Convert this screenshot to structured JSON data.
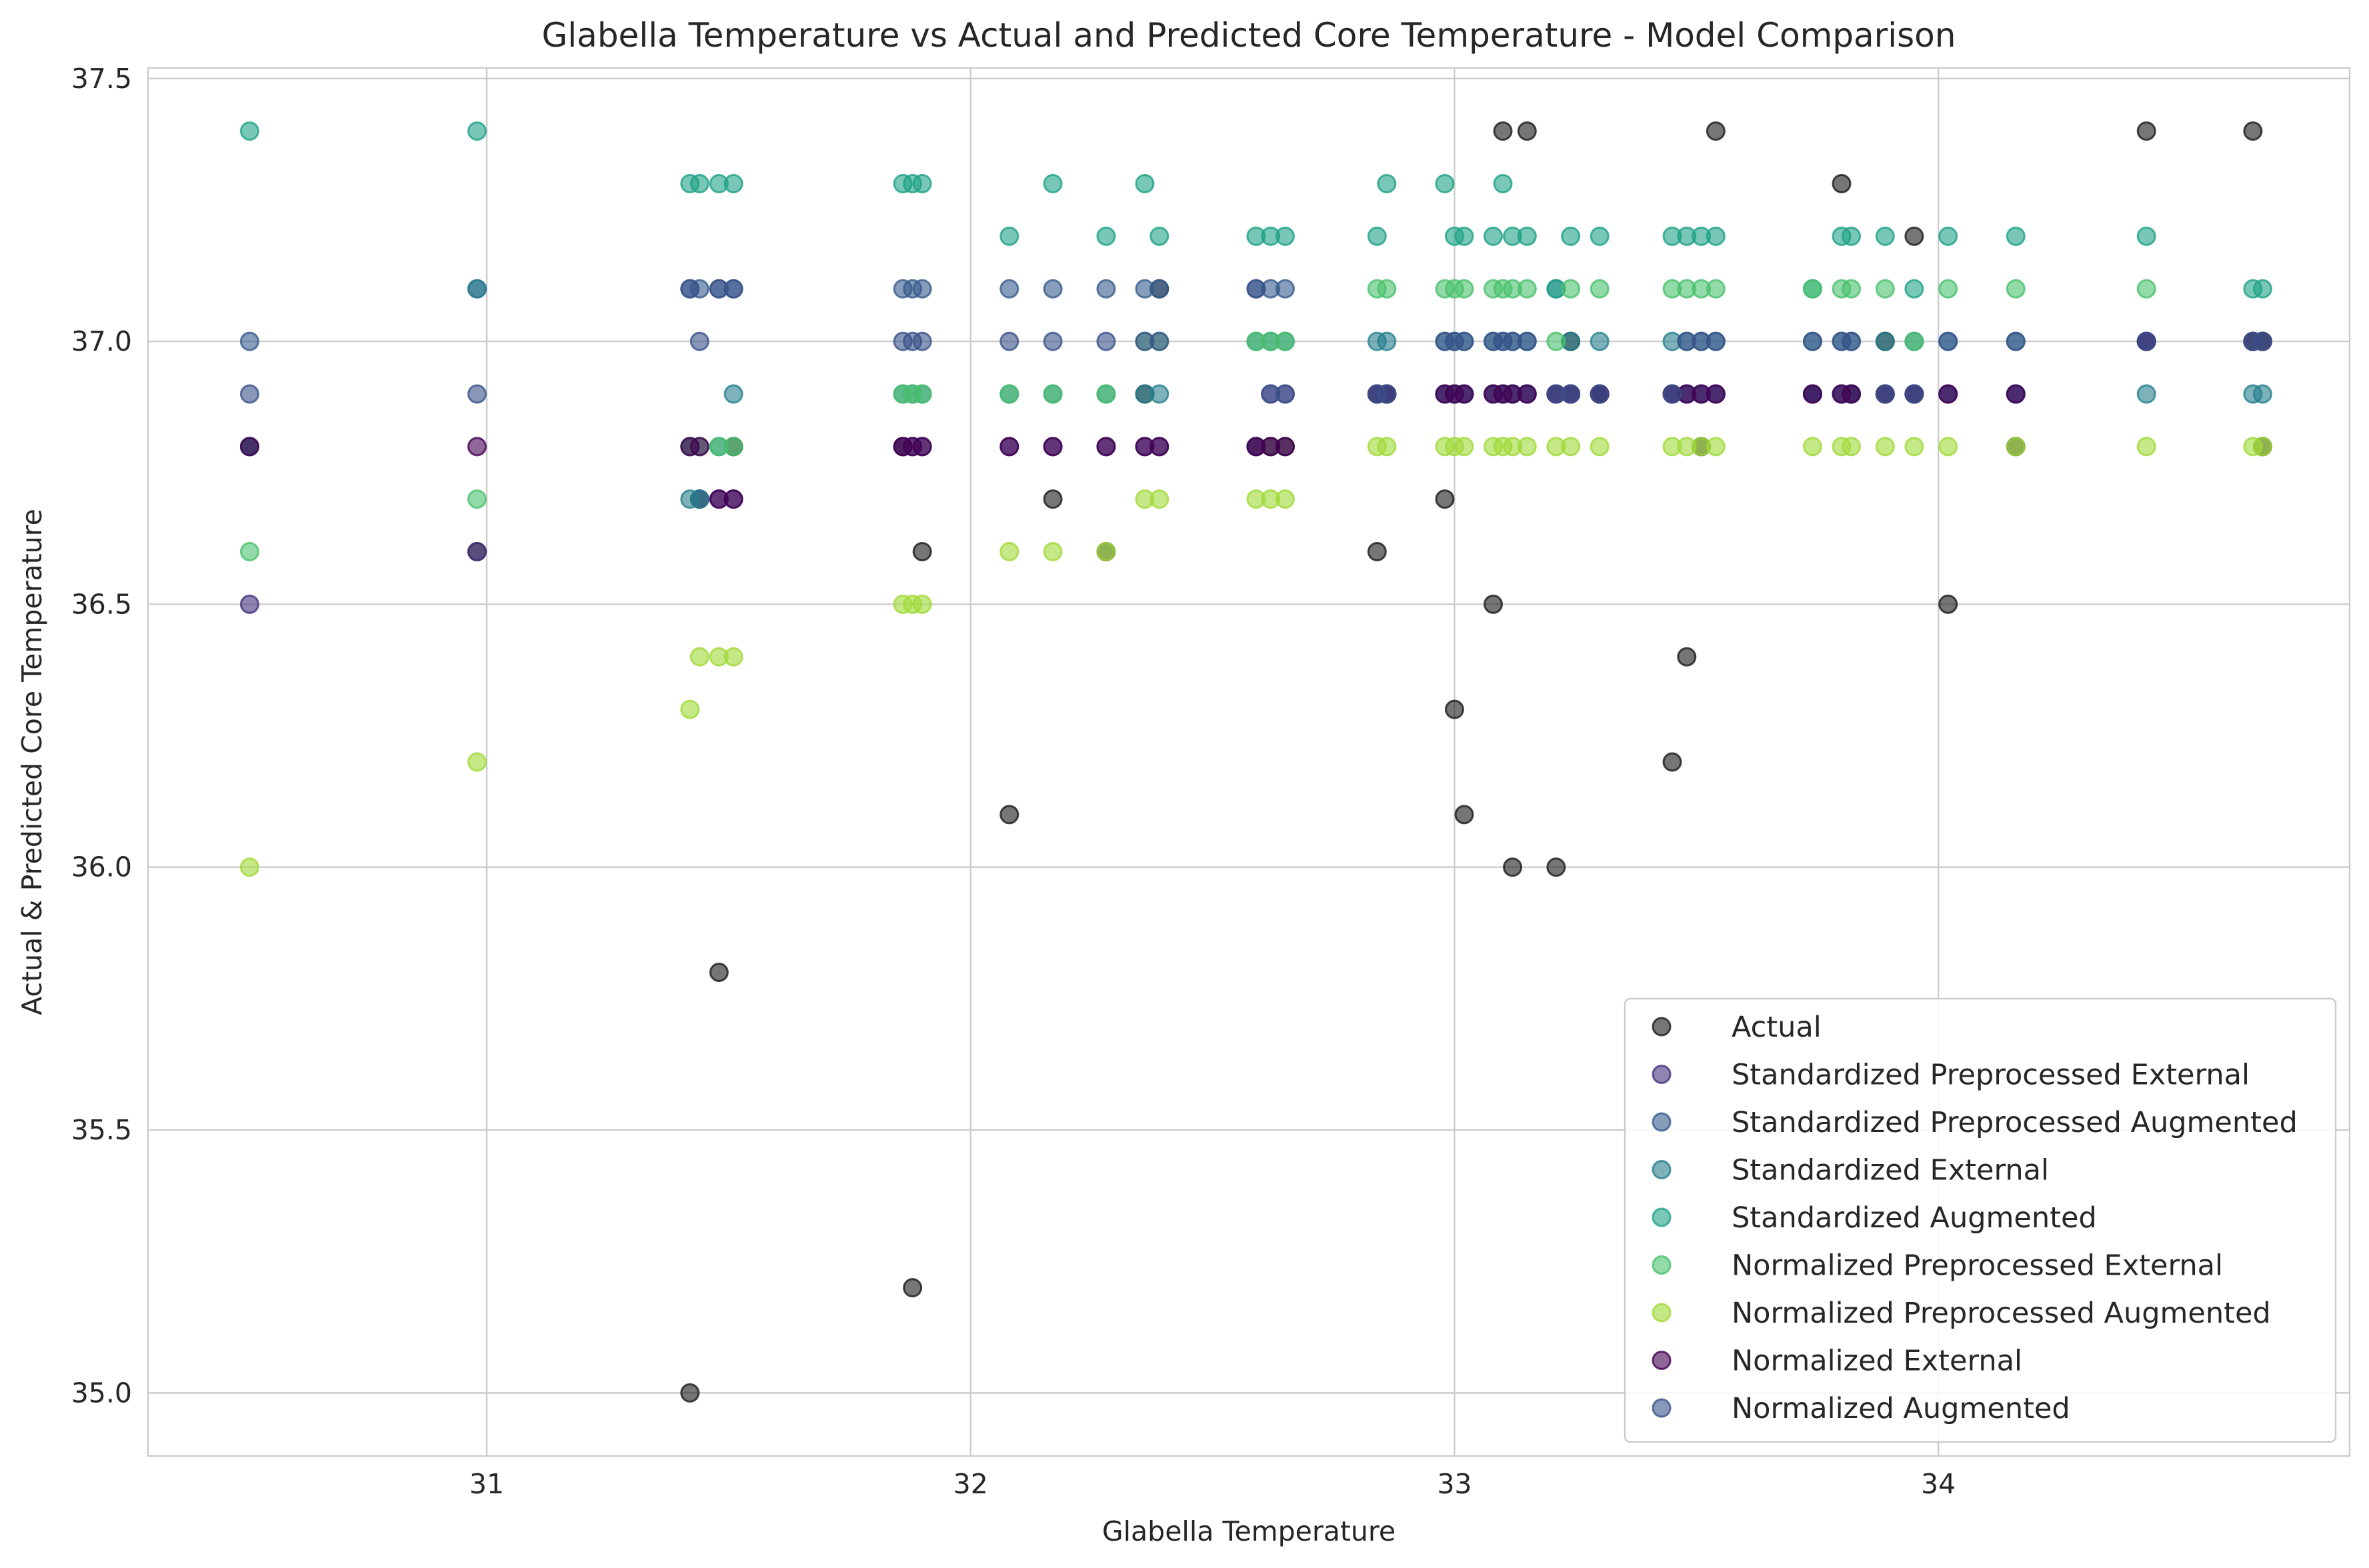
{
  "chart_data": {
    "type": "scatter",
    "title": "Glabella Temperature vs Actual and Predicted Core Temperature - Model Comparison",
    "xlabel": "Glabella Temperature",
    "ylabel": "Actual & Predicted Core Temperature",
    "xlim": [
      30.3,
      34.85
    ],
    "ylim": [
      34.88,
      37.52
    ],
    "xticks": [
      31,
      32,
      33,
      34
    ],
    "yticks": [
      35.0,
      35.5,
      36.0,
      36.5,
      37.0,
      37.5
    ],
    "xtick_labels": [
      "31",
      "32",
      "33",
      "34"
    ],
    "ytick_labels": [
      "35.0",
      "35.5",
      "36.0",
      "36.5",
      "37.0",
      "37.5"
    ],
    "grid": true,
    "legend_position": "lower-right",
    "marker_alpha": 0.6,
    "x": [
      30.51,
      30.98,
      31.42,
      31.44,
      31.48,
      31.51,
      31.86,
      31.88,
      31.9,
      32.08,
      32.17,
      32.28,
      32.36,
      32.39,
      32.59,
      32.62,
      32.65,
      32.84,
      32.86,
      32.98,
      33.0,
      33.02,
      33.08,
      33.1,
      33.12,
      33.15,
      33.21,
      33.24,
      33.3,
      33.45,
      33.48,
      33.51,
      33.54,
      33.74,
      33.8,
      33.82,
      33.89,
      33.95,
      34.02,
      34.16,
      34.43,
      34.65,
      34.67
    ],
    "series": [
      {
        "name": "Actual",
        "color": "#1a1a1a",
        "y": [
          36.8,
          36.6,
          35.0,
          36.7,
          35.8,
          36.8,
          36.8,
          35.2,
          36.6,
          36.1,
          36.7,
          36.6,
          36.9,
          37.1,
          36.8,
          36.8,
          36.8,
          36.6,
          36.9,
          36.7,
          36.3,
          36.1,
          36.5,
          37.4,
          36.0,
          37.4,
          36.0,
          37.0,
          36.9,
          36.2,
          36.4,
          36.8,
          37.4,
          36.9,
          37.3,
          36.9,
          37.0,
          37.2,
          36.5,
          36.8,
          37.4,
          37.4,
          36.8
        ]
      },
      {
        "name": "Standardized Preprocessed External",
        "color": "#46327e",
        "y": [
          36.5,
          36.6,
          36.8,
          36.7,
          36.7,
          36.7,
          36.8,
          36.8,
          36.8,
          36.8,
          36.8,
          36.8,
          36.8,
          36.8,
          36.8,
          36.9,
          36.9,
          36.9,
          36.9,
          36.9,
          36.9,
          36.9,
          36.9,
          36.9,
          36.9,
          36.9,
          36.9,
          36.9,
          36.9,
          36.9,
          36.9,
          36.9,
          36.9,
          36.9,
          36.9,
          36.9,
          36.9,
          36.9,
          36.9,
          36.9,
          37.0,
          37.0,
          37.0
        ]
      },
      {
        "name": "Standardized Preprocessed Augmented",
        "color": "#365c8d",
        "y": [
          37.0,
          37.1,
          37.1,
          37.1,
          37.1,
          37.1,
          37.1,
          37.1,
          37.1,
          37.1,
          37.1,
          37.1,
          37.1,
          37.1,
          37.1,
          37.1,
          37.1,
          36.9,
          36.9,
          36.9,
          36.9,
          36.9,
          36.9,
          36.9,
          36.9,
          36.9,
          36.9,
          36.9,
          36.9,
          36.9,
          36.9,
          36.9,
          36.9,
          36.9,
          36.9,
          36.9,
          36.9,
          36.9,
          36.9,
          36.9,
          37.0,
          37.0,
          37.0
        ]
      },
      {
        "name": "Standardized External",
        "color": "#277f8e",
        "y": [
          36.8,
          37.1,
          36.7,
          36.7,
          36.8,
          36.9,
          36.9,
          36.9,
          36.9,
          36.9,
          36.9,
          36.9,
          36.9,
          36.9,
          37.0,
          37.0,
          37.0,
          37.0,
          37.0,
          37.0,
          37.0,
          37.0,
          37.0,
          37.0,
          37.0,
          37.0,
          37.1,
          37.0,
          37.0,
          37.0,
          37.0,
          37.0,
          37.0,
          37.0,
          37.0,
          37.0,
          37.0,
          37.0,
          37.0,
          37.0,
          36.9,
          36.9,
          36.9
        ]
      },
      {
        "name": "Standardized Augmented",
        "color": "#1fa187",
        "y": [
          37.4,
          37.4,
          37.3,
          37.3,
          37.3,
          37.3,
          37.3,
          37.3,
          37.3,
          37.2,
          37.3,
          37.2,
          37.3,
          37.2,
          37.2,
          37.2,
          37.2,
          37.2,
          37.3,
          37.3,
          37.2,
          37.2,
          37.2,
          37.3,
          37.2,
          37.2,
          37.1,
          37.2,
          37.2,
          37.2,
          37.2,
          37.2,
          37.2,
          37.1,
          37.2,
          37.2,
          37.2,
          37.1,
          37.2,
          37.2,
          37.2,
          37.1,
          37.1
        ]
      },
      {
        "name": "Normalized Preprocessed External",
        "color": "#4ac16d",
        "y": [
          36.6,
          36.7,
          36.8,
          36.8,
          36.8,
          36.8,
          36.9,
          36.9,
          36.9,
          36.9,
          36.9,
          36.9,
          37.0,
          37.0,
          37.0,
          37.0,
          37.0,
          37.1,
          37.1,
          37.1,
          37.1,
          37.1,
          37.1,
          37.1,
          37.1,
          37.1,
          37.0,
          37.1,
          37.1,
          37.1,
          37.1,
          37.1,
          37.1,
          37.1,
          37.1,
          37.1,
          37.1,
          37.0,
          37.1,
          37.1,
          37.1,
          37.0,
          37.0
        ]
      },
      {
        "name": "Normalized Preprocessed Augmented",
        "color": "#a0da39",
        "y": [
          36.0,
          36.2,
          36.3,
          36.4,
          36.4,
          36.4,
          36.5,
          36.5,
          36.5,
          36.6,
          36.6,
          36.6,
          36.7,
          36.7,
          36.7,
          36.7,
          36.7,
          36.8,
          36.8,
          36.8,
          36.8,
          36.8,
          36.8,
          36.8,
          36.8,
          36.8,
          36.8,
          36.8,
          36.8,
          36.8,
          36.8,
          36.8,
          36.8,
          36.8,
          36.8,
          36.8,
          36.8,
          36.8,
          36.8,
          36.8,
          36.8,
          36.8,
          36.8
        ]
      },
      {
        "name": "Normalized External",
        "color": "#440154",
        "y": [
          36.8,
          36.8,
          36.8,
          36.8,
          36.7,
          36.7,
          36.8,
          36.8,
          36.8,
          36.8,
          36.8,
          36.8,
          36.8,
          36.8,
          36.8,
          36.8,
          36.8,
          36.9,
          36.9,
          36.9,
          36.9,
          36.9,
          36.9,
          36.9,
          36.9,
          36.9,
          36.9,
          36.9,
          36.9,
          36.9,
          36.9,
          36.9,
          36.9,
          36.9,
          36.9,
          36.9,
          36.9,
          36.9,
          36.9,
          36.9,
          37.0,
          37.0,
          37.0
        ]
      },
      {
        "name": "Normalized Augmented",
        "color": "#3b528b",
        "y": [
          36.9,
          36.9,
          37.1,
          37.0,
          37.1,
          37.1,
          37.0,
          37.0,
          37.0,
          37.0,
          37.0,
          37.0,
          37.0,
          37.0,
          37.1,
          36.9,
          36.9,
          36.9,
          36.9,
          37.0,
          37.0,
          37.0,
          37.0,
          37.0,
          37.0,
          37.0,
          36.9,
          36.9,
          36.9,
          36.9,
          37.0,
          37.0,
          37.0,
          37.0,
          37.0,
          37.0,
          36.9,
          36.9,
          37.0,
          37.0,
          37.0,
          37.0,
          37.0
        ]
      }
    ]
  }
}
